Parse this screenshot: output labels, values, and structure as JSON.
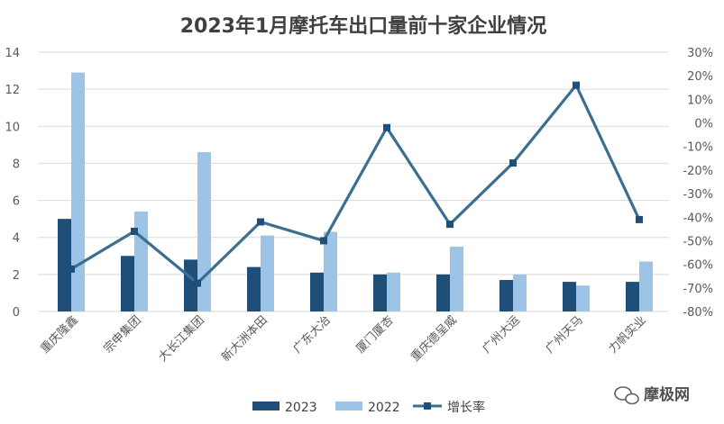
{
  "chart_data": {
    "type": "bar",
    "title": "2023年1月摩托车出口量前十家企业情况",
    "categories": [
      "重庆隆鑫",
      "宗申集团",
      "大长江集团",
      "新大洲本田",
      "广东大冶",
      "厦门厦杏",
      "重庆德呈威",
      "广州大运",
      "广州天马",
      "力帆实业"
    ],
    "series": [
      {
        "name": "2023",
        "values": [
          5.0,
          3.0,
          2.8,
          2.4,
          2.1,
          2.0,
          2.0,
          1.7,
          1.6,
          1.6
        ],
        "color": "#1f4e79",
        "axis": "left"
      },
      {
        "name": "2022",
        "values": [
          12.9,
          5.4,
          8.6,
          4.1,
          4.3,
          2.1,
          3.5,
          2.0,
          1.4,
          2.7
        ],
        "color": "#9dc3e6",
        "axis": "left"
      },
      {
        "name": "增长率",
        "type": "line",
        "values": [
          -62,
          -46,
          -68,
          -42,
          -50,
          -2,
          -43,
          -17,
          16,
          -41
        ],
        "color": "#3a6f91",
        "axis": "right"
      }
    ],
    "ylim_left": [
      0,
      14
    ],
    "yticks_left": [
      0,
      2,
      4,
      6,
      8,
      10,
      12,
      14
    ],
    "ylim_right": [
      -80,
      30
    ],
    "yticks_right": [
      "30%",
      "20%",
      "10%",
      "0%",
      "-10%",
      "-20%",
      "-30%",
      "-40%",
      "-50%",
      "-60%",
      "-70%",
      "-80%"
    ],
    "grid": true,
    "legend_position": "bottom"
  },
  "watermark": "摩极网"
}
